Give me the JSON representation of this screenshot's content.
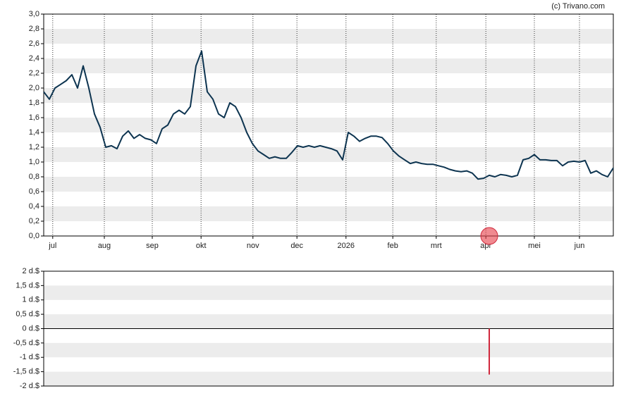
{
  "copyright": "(c) Trivano.com",
  "chart_data": [
    {
      "type": "line",
      "color": "#0d3450",
      "values": [
        1.95,
        1.85,
        2.0,
        2.05,
        2.1,
        2.18,
        2.0,
        2.3,
        2.0,
        1.65,
        1.47,
        1.2,
        1.22,
        1.18,
        1.35,
        1.42,
        1.32,
        1.37,
        1.32,
        1.3,
        1.25,
        1.45,
        1.5,
        1.65,
        1.7,
        1.65,
        1.75,
        2.3,
        2.5,
        1.95,
        1.85,
        1.65,
        1.6,
        1.8,
        1.75,
        1.6,
        1.4,
        1.25,
        1.15,
        1.1,
        1.05,
        1.07,
        1.05,
        1.05,
        1.13,
        1.22,
        1.2,
        1.22,
        1.2,
        1.22,
        1.2,
        1.18,
        1.15,
        1.03,
        1.4,
        1.35,
        1.28,
        1.32,
        1.35,
        1.35,
        1.33,
        1.25,
        1.15,
        1.08,
        1.03,
        0.98,
        1.0,
        0.98,
        0.97,
        0.97,
        0.95,
        0.93,
        0.9,
        0.88,
        0.87,
        0.88,
        0.85,
        0.77,
        0.78,
        0.82,
        0.8,
        0.83,
        0.82,
        0.8,
        0.82,
        1.03,
        1.05,
        1.1,
        1.03,
        1.03,
        1.02,
        1.02,
        0.95,
        1.0,
        1.01,
        1.0,
        1.02,
        0.85,
        0.88,
        0.83,
        0.8,
        0.92
      ],
      "xlim": [
        0,
        101
      ],
      "xticks": [
        {
          "value": 1.6,
          "label": "jul"
        },
        {
          "value": 10.75,
          "label": "aug"
        },
        {
          "value": 19.25,
          "label": "sep"
        },
        {
          "value": 27.9,
          "label": "okt"
        },
        {
          "value": 37.1,
          "label": "nov"
        },
        {
          "value": 44.9,
          "label": "dec"
        },
        {
          "value": 53.6,
          "label": "2026"
        },
        {
          "value": 61.9,
          "label": "feb"
        },
        {
          "value": 69.6,
          "label": "mrt"
        },
        {
          "value": 78.4,
          "label": "apr"
        },
        {
          "value": 87,
          "label": "mei"
        },
        {
          "value": 95,
          "label": "jun"
        }
      ],
      "ylim": [
        0,
        3
      ],
      "yticks": [
        {
          "value": 0,
          "label": "0,0"
        },
        {
          "value": 0.2,
          "label": "0,2"
        },
        {
          "value": 0.4,
          "label": "0,4"
        },
        {
          "value": 0.6,
          "label": "0,6"
        },
        {
          "value": 0.8,
          "label": "0,8"
        },
        {
          "value": 1,
          "label": "1,0"
        },
        {
          "value": 1.2,
          "label": "1,2"
        },
        {
          "value": 1.4,
          "label": "1,4"
        },
        {
          "value": 1.6,
          "label": "1,6"
        },
        {
          "value": 1.8,
          "label": "1,8"
        },
        {
          "value": 2,
          "label": "2,0"
        },
        {
          "value": 2.2,
          "label": "2,2"
        },
        {
          "value": 2.4,
          "label": "2,4"
        },
        {
          "value": 2.6,
          "label": "2,6"
        },
        {
          "value": 2.8,
          "label": "2,8"
        },
        {
          "value": 3,
          "label": "3,0"
        }
      ],
      "grid": true
    },
    {
      "type": "bar",
      "color": "#d0283c",
      "x": [
        79
      ],
      "values": [
        -1.6
      ],
      "xlim": [
        0,
        101
      ],
      "ylim": [
        -2,
        2
      ],
      "yticks": [
        {
          "value": 2,
          "label": "2 d.$"
        },
        {
          "value": 1.5,
          "label": "1,5 d.$"
        },
        {
          "value": 1,
          "label": "1 d.$"
        },
        {
          "value": 0.5,
          "label": "0,5 d.$"
        },
        {
          "value": 0,
          "label": "0 d.$"
        },
        {
          "value": -0.5,
          "label": "-0,5 d.$"
        },
        {
          "value": -1,
          "label": "-1 d.$"
        },
        {
          "value": -1.5,
          "label": "-1,5 d.$"
        },
        {
          "value": -2,
          "label": "-2 d.$"
        }
      ]
    }
  ]
}
